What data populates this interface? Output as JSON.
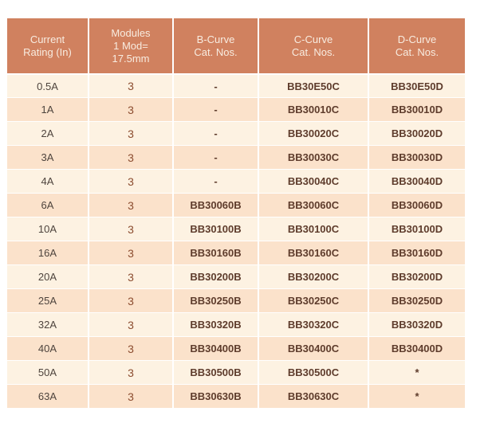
{
  "colors": {
    "header_bg": "#d0815f",
    "header_text": "#f8ece0",
    "row_light": "#fdf2e2",
    "row_dark": "#fbe2cb",
    "rating_text": "#4e443d",
    "modules_text": "#8c4d30",
    "catalog_text": "#5e3c2c"
  },
  "table": {
    "headers": [
      {
        "id": "current-rating",
        "lines": [
          "Current",
          "Rating (In)"
        ]
      },
      {
        "id": "modules",
        "lines": [
          "Modules",
          "1 Mod=",
          "17.5mm"
        ]
      },
      {
        "id": "b-curve",
        "lines": [
          "B-Curve",
          "Cat. Nos."
        ]
      },
      {
        "id": "c-curve",
        "lines": [
          "C-Curve",
          "Cat. Nos."
        ]
      },
      {
        "id": "d-curve",
        "lines": [
          "D-Curve",
          "Cat. Nos."
        ]
      }
    ],
    "rows": [
      {
        "rating": "0.5A",
        "modules": "3",
        "b_curve": "-",
        "c_curve": "BB30E50C",
        "d_curve": "BB30E50D"
      },
      {
        "rating": "1A",
        "modules": "3",
        "b_curve": "-",
        "c_curve": "BB30010C",
        "d_curve": "BB30010D"
      },
      {
        "rating": "2A",
        "modules": "3",
        "b_curve": "-",
        "c_curve": "BB30020C",
        "d_curve": "BB30020D"
      },
      {
        "rating": "3A",
        "modules": "3",
        "b_curve": "-",
        "c_curve": "BB30030C",
        "d_curve": "BB30030D"
      },
      {
        "rating": "4A",
        "modules": "3",
        "b_curve": "-",
        "c_curve": "BB30040C",
        "d_curve": "BB30040D"
      },
      {
        "rating": "6A",
        "modules": "3",
        "b_curve": "BB30060B",
        "c_curve": "BB30060C",
        "d_curve": "BB30060D"
      },
      {
        "rating": "10A",
        "modules": "3",
        "b_curve": "BB30100B",
        "c_curve": "BB30100C",
        "d_curve": "BB30100D"
      },
      {
        "rating": "16A",
        "modules": "3",
        "b_curve": "BB30160B",
        "c_curve": "BB30160C",
        "d_curve": "BB30160D"
      },
      {
        "rating": "20A",
        "modules": "3",
        "b_curve": "BB30200B",
        "c_curve": "BB30200C",
        "d_curve": "BB30200D"
      },
      {
        "rating": "25A",
        "modules": "3",
        "b_curve": "BB30250B",
        "c_curve": "BB30250C",
        "d_curve": "BB30250D"
      },
      {
        "rating": "32A",
        "modules": "3",
        "b_curve": "BB30320B",
        "c_curve": "BB30320C",
        "d_curve": "BB30320D"
      },
      {
        "rating": "40A",
        "modules": "3",
        "b_curve": "BB30400B",
        "c_curve": "BB30400C",
        "d_curve": "BB30400D"
      },
      {
        "rating": "50A",
        "modules": "3",
        "b_curve": "BB30500B",
        "c_curve": "BB30500C",
        "d_curve": "*"
      },
      {
        "rating": "63A",
        "modules": "3",
        "b_curve": "BB30630B",
        "c_curve": "BB30630C",
        "d_curve": "*"
      }
    ]
  }
}
